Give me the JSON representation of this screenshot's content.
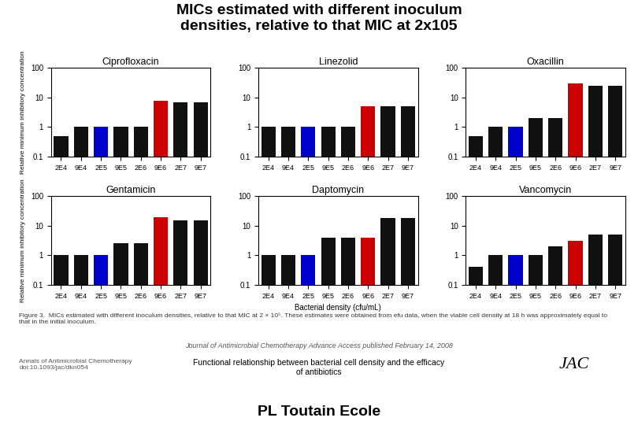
{
  "title": "MICs estimated with different inoculum\ndensities, relative to that MIC at 2x105",
  "annotations": [
    "Figure 3.  MICs estimated with different inoculum densities, relative to that MIC at 2 × 10⁵. These estimates were obtained from efu data, when the viable cell density at 18 h was approximately equal to\nthat in the initial inoculum.",
    "Journal of Antimicrobial Chemotherapy Advance Access published February 14, 2008",
    "Annals of Antimicrobial Chemotherapy\ndoi:10.1093/jac/dkn054",
    "Functional relationship between bacterial cell density and the efficacy\nof antibiotics",
    "JAC",
    "PL Toutain Ecole"
  ],
  "chart_data": [
    {
      "type": "bar",
      "title": "Ciprofloxacin",
      "log": "y",
      "categories": [
        "2E4",
        "9E4",
        "2E5",
        "9E5",
        "2E6",
        "9E6",
        "2E7",
        "9E7"
      ],
      "values": [
        0.5,
        1.0,
        1.0,
        1.0,
        1.0,
        8.0,
        7.0,
        7.0
      ],
      "colors": [
        "#111111",
        "#111111",
        "#0000cc",
        "#111111",
        "#111111",
        "#cc0000",
        "#111111",
        "#111111"
      ],
      "ylim": [
        0.1,
        100
      ],
      "yticks": [
        0.1,
        1,
        10,
        100
      ],
      "ylabel": "Relative minimum inhibitory concentration"
    },
    {
      "type": "bar",
      "title": "Linezolid",
      "log": "y",
      "categories": [
        "2E4",
        "9E4",
        "2E5",
        "9E5",
        "2E6",
        "9E6",
        "2E7",
        "9E7"
      ],
      "values": [
        1.0,
        1.0,
        1.0,
        1.0,
        1.0,
        5.0,
        5.0,
        5.0
      ],
      "colors": [
        "#111111",
        "#111111",
        "#0000cc",
        "#111111",
        "#111111",
        "#cc0000",
        "#111111",
        "#111111"
      ],
      "ylim": [
        0.1,
        100
      ],
      "yticks": [
        0.1,
        1,
        10,
        100
      ]
    },
    {
      "type": "bar",
      "title": "Oxacillin",
      "log": "y",
      "categories": [
        "2E4",
        "9E4",
        "2E5",
        "9E5",
        "2E6",
        "9E6",
        "2E7",
        "9E7"
      ],
      "values": [
        0.5,
        1.0,
        1.0,
        2.0,
        2.0,
        30.0,
        25.0,
        25.0
      ],
      "colors": [
        "#111111",
        "#111111",
        "#0000cc",
        "#111111",
        "#111111",
        "#cc0000",
        "#111111",
        "#111111"
      ],
      "ylim": [
        0.1,
        100
      ],
      "yticks": [
        0.1,
        1,
        10,
        100
      ]
    },
    {
      "type": "bar",
      "title": "Gentamicin",
      "log": "y",
      "categories": [
        "2E4",
        "9E4",
        "2E5",
        "9E5",
        "2E6",
        "9E6",
        "2E7",
        "9E7"
      ],
      "values": [
        1.0,
        1.0,
        1.0,
        2.5,
        2.5,
        20.0,
        15.0,
        15.0
      ],
      "colors": [
        "#111111",
        "#111111",
        "#0000cc",
        "#111111",
        "#111111",
        "#cc0000",
        "#111111",
        "#111111"
      ],
      "ylim": [
        0.1,
        100
      ],
      "yticks": [
        0.1,
        1,
        10,
        100
      ],
      "ylabel": "Relative minimum inhibitory concentration"
    },
    {
      "type": "bar",
      "title": "Daptomycin",
      "log": "y",
      "categories": [
        "2E4",
        "9E4",
        "2E5",
        "9E5",
        "2E6",
        "9E6",
        "2E7",
        "9E7"
      ],
      "values": [
        1.0,
        1.0,
        1.0,
        4.0,
        4.0,
        4.0,
        18.0,
        18.0
      ],
      "colors": [
        "#111111",
        "#111111",
        "#0000cc",
        "#111111",
        "#111111",
        "#cc0000",
        "#111111",
        "#111111"
      ],
      "ylim": [
        0.1,
        100
      ],
      "yticks": [
        0.1,
        1,
        10,
        100
      ],
      "xlabel": "Bacterial density (cfu/mL)"
    },
    {
      "type": "bar",
      "title": "Vancomycin",
      "log": "y",
      "categories": [
        "2E4",
        "9E4",
        "2E5",
        "9E5",
        "2E6",
        "9E6",
        "2E7",
        "9E7"
      ],
      "values": [
        0.4,
        1.0,
        1.0,
        1.0,
        2.0,
        3.0,
        5.0,
        5.0
      ],
      "colors": [
        "#111111",
        "#111111",
        "#0000cc",
        "#111111",
        "#111111",
        "#cc0000",
        "#111111",
        "#111111"
      ],
      "ylim": [
        0.1,
        100
      ],
      "yticks": [
        0.1,
        1,
        10,
        100
      ]
    }
  ]
}
